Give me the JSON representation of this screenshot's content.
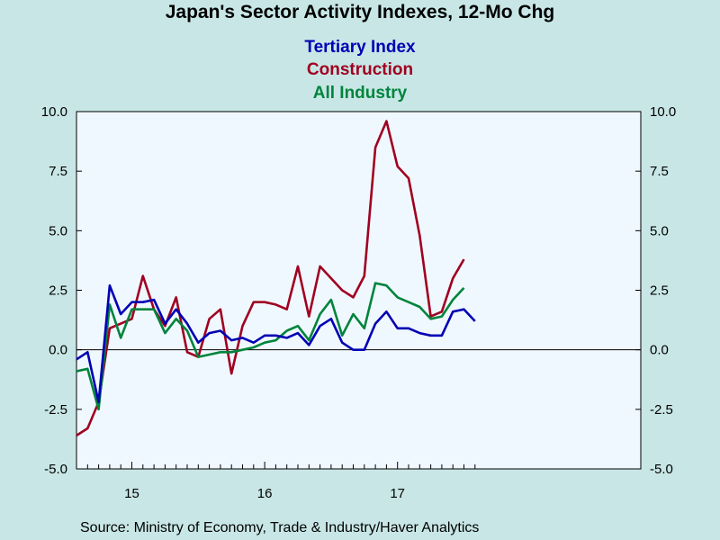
{
  "title": "Japan's Sector Activity Indexes, 12-Mo Chg",
  "source": "Source:  Ministry of Economy, Trade & Industry/Haver Analytics",
  "colors": {
    "background": "#c8e6e6",
    "plot_background": "#f0f8ff",
    "tertiary": "#0000b4",
    "construction": "#a00020",
    "all_industry": "#00843c"
  },
  "chart_data": {
    "type": "line",
    "title": "Japan's Sector Activity Indexes, 12-Mo Chg",
    "xlabel": "",
    "ylabel": "",
    "ylim": [
      -5.0,
      10.0
    ],
    "yticks": [
      "10.0",
      "7.5",
      "5.0",
      "2.5",
      "0.0",
      "-2.5",
      "-5.0"
    ],
    "ytick_values": [
      10.0,
      7.5,
      5.0,
      2.5,
      0.0,
      -2.5,
      -5.0
    ],
    "xticks": [
      "15",
      "16",
      "17"
    ],
    "grid": false,
    "legend_position": "top-center",
    "x": [
      "2014-08",
      "2014-09",
      "2014-10",
      "2014-11",
      "2014-12",
      "2015-01",
      "2015-02",
      "2015-03",
      "2015-04",
      "2015-05",
      "2015-06",
      "2015-07",
      "2015-08",
      "2015-09",
      "2015-10",
      "2015-11",
      "2015-12",
      "2016-01",
      "2016-02",
      "2016-03",
      "2016-04",
      "2016-05",
      "2016-06",
      "2016-07",
      "2016-08",
      "2016-09",
      "2016-10",
      "2016-11",
      "2016-12",
      "2017-01",
      "2017-02",
      "2017-03",
      "2017-04",
      "2017-05",
      "2017-06",
      "2017-07",
      "2017-08"
    ],
    "series": [
      {
        "name": "Tertiary Index",
        "color": "#0000b4",
        "values": [
          -0.4,
          -0.1,
          -2.2,
          2.7,
          1.5,
          2.0,
          2.0,
          2.1,
          1.1,
          1.7,
          1.1,
          0.3,
          0.7,
          0.8,
          0.4,
          0.5,
          0.3,
          0.6,
          0.6,
          0.5,
          0.7,
          0.2,
          1.0,
          1.3,
          0.3,
          0.0,
          0.0,
          1.1,
          1.6,
          0.9,
          0.9,
          0.7,
          0.6,
          0.6,
          1.6,
          1.7,
          1.2
        ]
      },
      {
        "name": "Construction",
        "color": "#a00020",
        "values": [
          -3.6,
          -3.3,
          -2.2,
          0.9,
          1.1,
          1.3,
          3.1,
          1.7,
          1.0,
          2.2,
          -0.1,
          -0.3,
          1.3,
          1.7,
          -1.0,
          1.0,
          2.0,
          2.0,
          1.9,
          1.7,
          3.5,
          1.4,
          3.5,
          3.0,
          2.5,
          2.2,
          3.1,
          8.5,
          9.6,
          7.7,
          7.2,
          4.8,
          1.4,
          1.6,
          3.0,
          3.8,
          null
        ]
      },
      {
        "name": "All Industry",
        "color": "#00843c",
        "values": [
          -0.9,
          -0.8,
          -2.5,
          1.9,
          0.5,
          1.7,
          1.7,
          1.7,
          0.7,
          1.3,
          0.8,
          -0.3,
          -0.2,
          -0.1,
          -0.1,
          0.0,
          0.1,
          0.3,
          0.4,
          0.8,
          1.0,
          0.4,
          1.5,
          2.1,
          0.6,
          1.5,
          0.9,
          2.8,
          2.7,
          2.2,
          2.0,
          1.8,
          1.3,
          1.4,
          2.1,
          2.6,
          null
        ]
      }
    ]
  }
}
